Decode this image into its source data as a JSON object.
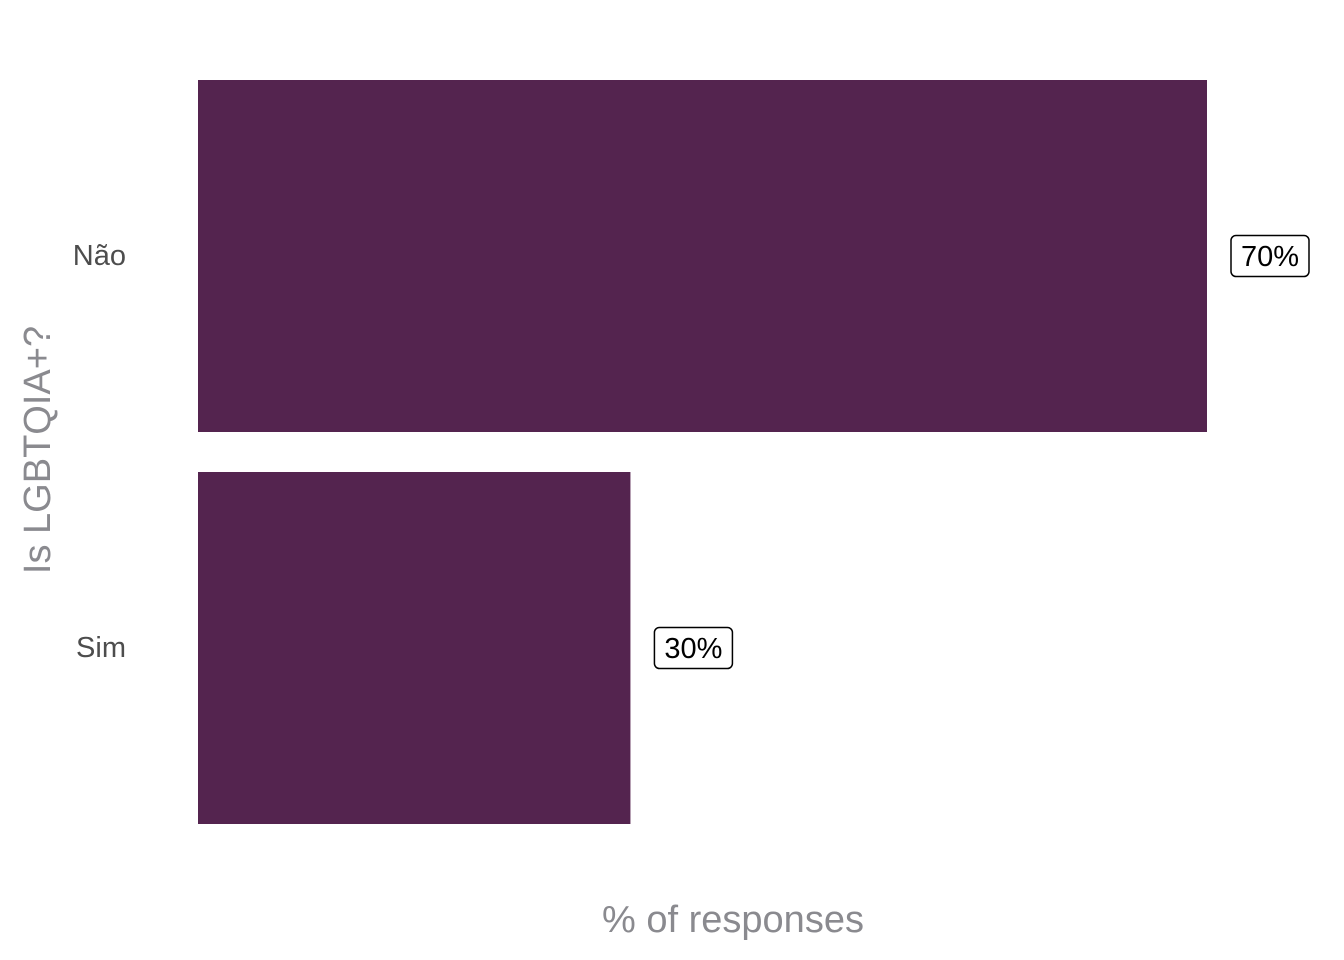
{
  "chart_data": {
    "type": "bar",
    "orientation": "horizontal",
    "categories": [
      "Não",
      "Sim"
    ],
    "values": [
      70,
      30
    ],
    "data_labels": [
      "70%",
      "30%"
    ],
    "title": "",
    "xlabel": "% of responses",
    "ylabel": "Is LGBTQIA+?",
    "xlim": [
      0,
      70
    ],
    "grid": false,
    "legend": "none",
    "bar_color": "#54244f"
  }
}
